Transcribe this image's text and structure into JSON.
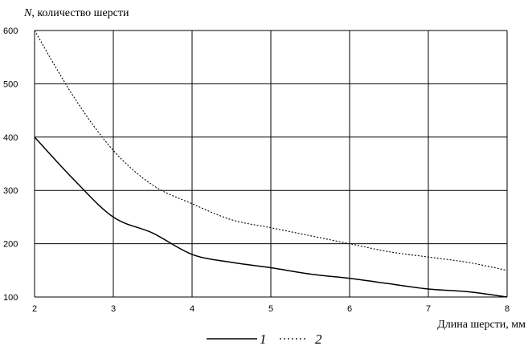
{
  "chart_data": {
    "type": "line",
    "y_axis_title": {
      "symbol": "N",
      "rest": ", количество шерсти"
    },
    "x_axis_title": "Длина шерсти, мм",
    "xlim": [
      2,
      8
    ],
    "ylim": [
      100,
      600
    ],
    "x_ticks": [
      2,
      3,
      4,
      5,
      6,
      7,
      8
    ],
    "y_ticks": [
      100,
      200,
      300,
      400,
      500,
      600
    ],
    "x_tick_labels": [
      "2",
      "3",
      "4",
      "5",
      "6",
      "7",
      "8"
    ],
    "y_tick_labels": [
      "100",
      "200",
      "300",
      "400",
      "500",
      "600"
    ],
    "grid": true,
    "legend_position": "bottom-center",
    "series": [
      {
        "name": "1",
        "style": "solid",
        "color": "#000000",
        "x": [
          2,
          2.5,
          3,
          3.5,
          4,
          4.5,
          5,
          5.5,
          6,
          6.5,
          7,
          7.5,
          8
        ],
        "y": [
          400,
          320,
          250,
          220,
          180,
          165,
          155,
          143,
          135,
          125,
          115,
          110,
          100
        ]
      },
      {
        "name": "2",
        "style": "dotted",
        "color": "#000000",
        "x": [
          2,
          2.5,
          3,
          3.5,
          4,
          4.5,
          5,
          5.5,
          6,
          6.5,
          7,
          7.5,
          8
        ],
        "y": [
          600,
          475,
          375,
          310,
          275,
          245,
          230,
          215,
          200,
          185,
          175,
          165,
          150
        ]
      }
    ]
  }
}
